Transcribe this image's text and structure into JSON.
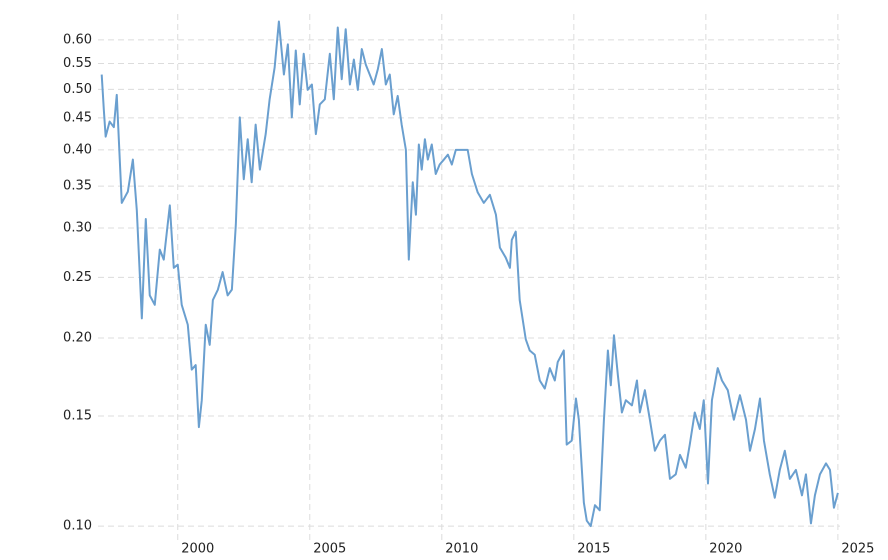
{
  "chart_data": {
    "type": "line",
    "log_scale": true,
    "grid": true,
    "color": "#6a9fcf",
    "x": [
      1997.12,
      1997.2,
      1997.27,
      1997.42,
      1997.58,
      1997.69,
      1997.88,
      1998.11,
      1998.3,
      1998.45,
      1998.64,
      1998.79,
      1998.94,
      1999.13,
      1999.32,
      1999.47,
      1999.7,
      1999.85,
      2000.0,
      2000.15,
      2000.38,
      2000.53,
      2000.68,
      2000.8,
      2000.91,
      2001.06,
      2001.21,
      2001.33,
      2001.52,
      2001.7,
      2001.89,
      2002.05,
      2002.2,
      2002.35,
      2002.5,
      2002.65,
      2002.8,
      2002.95,
      2003.11,
      2003.33,
      2003.48,
      2003.67,
      2003.83,
      2004.02,
      2004.17,
      2004.32,
      2004.47,
      2004.62,
      2004.77,
      2004.92,
      2005.08,
      2005.23,
      2005.38,
      2005.57,
      2005.76,
      2005.91,
      2006.06,
      2006.21,
      2006.36,
      2006.52,
      2006.67,
      2006.82,
      2006.97,
      2007.12,
      2007.27,
      2007.42,
      2007.58,
      2007.73,
      2007.88,
      2008.03,
      2008.18,
      2008.33,
      2008.48,
      2008.64,
      2008.75,
      2008.9,
      2009.02,
      2009.13,
      2009.24,
      2009.36,
      2009.47,
      2009.62,
      2009.77,
      2009.92,
      2010.08,
      2010.23,
      2010.38,
      2010.53,
      2010.76,
      2010.98,
      2011.14,
      2011.36,
      2011.59,
      2011.82,
      2012.05,
      2012.2,
      2012.42,
      2012.58,
      2012.65,
      2012.8,
      2012.95,
      2013.18,
      2013.33,
      2013.52,
      2013.71,
      2013.9,
      2014.09,
      2014.28,
      2014.39,
      2014.62,
      2014.73,
      2014.92,
      2015.08,
      2015.19,
      2015.38,
      2015.49,
      2015.64,
      2015.8,
      2015.98,
      2016.14,
      2016.29,
      2016.4,
      2016.52,
      2016.67,
      2016.82,
      2016.97,
      2017.2,
      2017.39,
      2017.5,
      2017.69,
      2017.88,
      2018.07,
      2018.26,
      2018.45,
      2018.64,
      2018.86,
      2019.02,
      2019.24,
      2019.39,
      2019.58,
      2019.77,
      2019.92,
      2020.08,
      2020.23,
      2020.45,
      2020.61,
      2020.83,
      2021.06,
      2021.29,
      2021.52,
      2021.67,
      2021.86,
      2022.05,
      2022.2,
      2022.42,
      2022.61,
      2022.8,
      2022.99,
      2023.18,
      2023.41,
      2023.64,
      2023.79,
      2023.98,
      2024.13,
      2024.32,
      2024.55,
      2024.7,
      2024.85,
      2025.0
    ],
    "values": [
      0.528,
      0.464,
      0.42,
      0.444,
      0.435,
      0.49,
      0.329,
      0.343,
      0.386,
      0.32,
      0.215,
      0.31,
      0.234,
      0.226,
      0.277,
      0.267,
      0.326,
      0.259,
      0.262,
      0.226,
      0.21,
      0.178,
      0.181,
      0.144,
      0.159,
      0.21,
      0.195,
      0.23,
      0.239,
      0.255,
      0.234,
      0.239,
      0.304,
      0.451,
      0.359,
      0.416,
      0.355,
      0.439,
      0.372,
      0.424,
      0.482,
      0.542,
      0.642,
      0.528,
      0.59,
      0.451,
      0.577,
      0.473,
      0.57,
      0.499,
      0.509,
      0.424,
      0.473,
      0.482,
      0.57,
      0.482,
      0.628,
      0.519,
      0.624,
      0.509,
      0.558,
      0.499,
      0.58,
      0.548,
      0.528,
      0.509,
      0.539,
      0.58,
      0.509,
      0.528,
      0.456,
      0.488,
      0.439,
      0.4,
      0.267,
      0.355,
      0.315,
      0.408,
      0.372,
      0.416,
      0.386,
      0.408,
      0.366,
      0.379,
      0.386,
      0.393,
      0.379,
      0.4,
      0.4,
      0.4,
      0.366,
      0.342,
      0.329,
      0.339,
      0.315,
      0.279,
      0.269,
      0.259,
      0.287,
      0.296,
      0.23,
      0.199,
      0.191,
      0.188,
      0.171,
      0.166,
      0.179,
      0.171,
      0.183,
      0.191,
      0.135,
      0.137,
      0.16,
      0.148,
      0.109,
      0.102,
      0.1,
      0.108,
      0.106,
      0.148,
      0.191,
      0.168,
      0.202,
      0.174,
      0.152,
      0.159,
      0.156,
      0.171,
      0.152,
      0.165,
      0.148,
      0.132,
      0.137,
      0.14,
      0.119,
      0.121,
      0.13,
      0.124,
      0.135,
      0.152,
      0.143,
      0.159,
      0.117,
      0.159,
      0.179,
      0.171,
      0.165,
      0.148,
      0.162,
      0.148,
      0.132,
      0.143,
      0.16,
      0.137,
      0.121,
      0.111,
      0.123,
      0.132,
      0.119,
      0.123,
      0.112,
      0.121,
      0.101,
      0.112,
      0.121,
      0.126,
      0.123,
      0.107,
      0.113
    ],
    "xlim": [
      1996.98,
      2025.08
    ],
    "xticks": [
      2000,
      2005,
      2010,
      2015,
      2020,
      2025
    ],
    "ylim": [
      0.095,
      0.66
    ],
    "yticks": [
      {
        "value": 0.1,
        "label": "0.10"
      },
      0.15,
      {
        "value": 0.2,
        "label": "0.20"
      },
      0.25,
      {
        "value": 0.3,
        "label": "0.30"
      },
      0.35,
      {
        "value": 0.4,
        "label": "0.40"
      },
      0.45,
      {
        "value": 0.5,
        "label": "0.50"
      },
      0.55,
      {
        "value": 0.6,
        "label": "0.60"
      }
    ]
  }
}
